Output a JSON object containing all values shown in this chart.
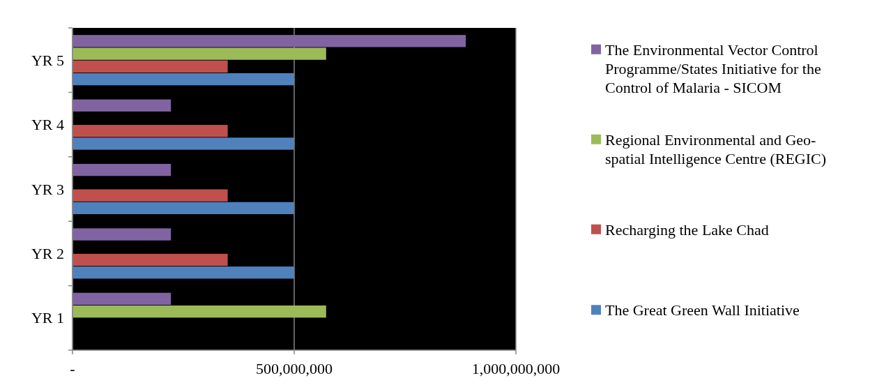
{
  "chart_data": {
    "type": "bar",
    "orientation": "horizontal",
    "categories": [
      "YR 5",
      "YR 4",
      "YR 3",
      "YR 2",
      "YR 1"
    ],
    "series": [
      {
        "name": "The Environmental Vector Control Programme/States Initiative for the Control of Malaria - SICOM",
        "color": "#8064a2",
        "values": [
          887000000,
          222000000,
          222000000,
          222000000,
          222000000
        ]
      },
      {
        "name": "Regional Environmental and Geo-spatial Intelligence Centre (REGIC)",
        "color": "#9bbb59",
        "values": [
          572000000,
          null,
          null,
          null,
          572000000
        ]
      },
      {
        "name": "Recharging the Lake Chad",
        "color": "#c0504d",
        "values": [
          350000000,
          350000000,
          350000000,
          350000000,
          null
        ]
      },
      {
        "name": "The Great Green Wall Initiative",
        "color": "#4f81bd",
        "values": [
          500000000,
          500000000,
          500000000,
          500000000,
          null
        ]
      }
    ],
    "xlim": [
      0,
      1000000000
    ],
    "xticks": [
      {
        "value": 0,
        "label": "-"
      },
      {
        "value": 500000000,
        "label": "500,000,000"
      },
      {
        "value": 1000000000,
        "label": "1,000,000,000"
      }
    ],
    "grid": "x",
    "legend": "right"
  }
}
